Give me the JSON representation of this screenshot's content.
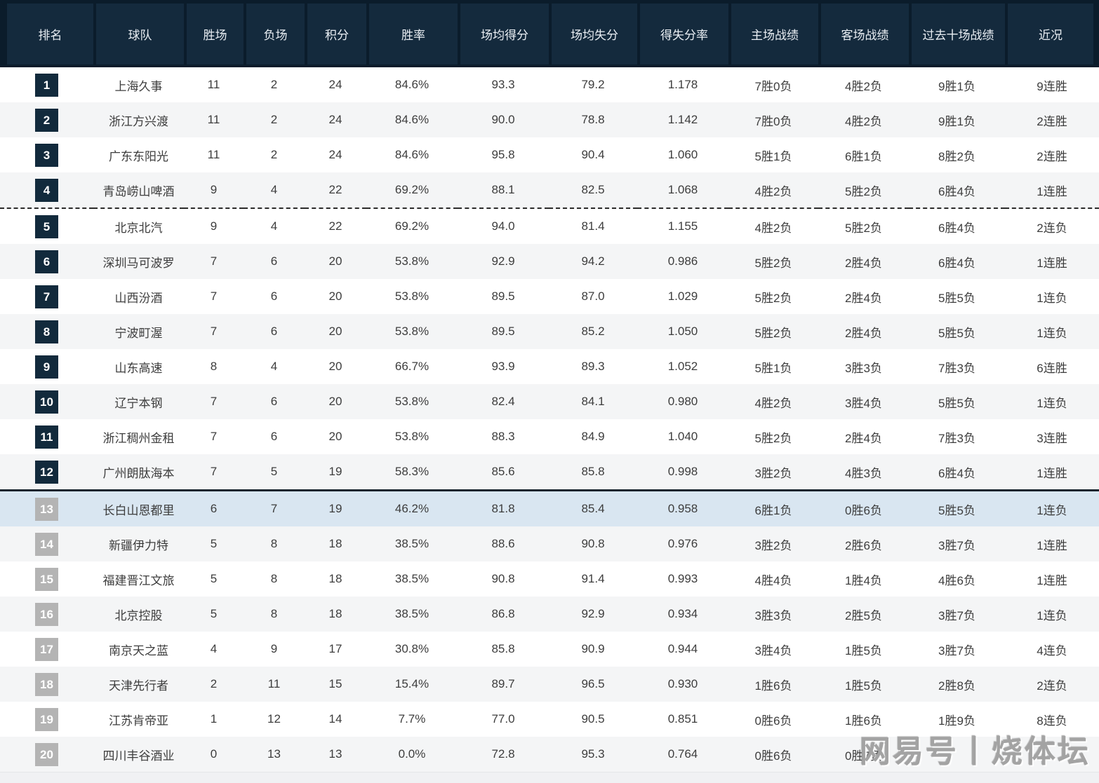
{
  "chart_data": {
    "type": "table",
    "columns": [
      "排名",
      "球队",
      "胜场",
      "负场",
      "积分",
      "胜率",
      "场均得分",
      "场均失分",
      "得失分率",
      "主场战绩",
      "客场战绩",
      "过去十场战绩",
      "近况"
    ],
    "rows": [
      {
        "rank": "1",
        "team": "上海久事",
        "wins": "11",
        "losses": "2",
        "points": "24",
        "win_rate": "84.6%",
        "pts_for": "93.3",
        "pts_against": "79.2",
        "ratio": "1.178",
        "home": "7胜0负",
        "away": "4胜2负",
        "last10": "9胜1负",
        "streak": "9连胜"
      },
      {
        "rank": "2",
        "team": "浙江方兴渡",
        "wins": "11",
        "losses": "2",
        "points": "24",
        "win_rate": "84.6%",
        "pts_for": "90.0",
        "pts_against": "78.8",
        "ratio": "1.142",
        "home": "7胜0负",
        "away": "4胜2负",
        "last10": "9胜1负",
        "streak": "2连胜"
      },
      {
        "rank": "3",
        "team": "广东东阳光",
        "wins": "11",
        "losses": "2",
        "points": "24",
        "win_rate": "84.6%",
        "pts_for": "95.8",
        "pts_against": "90.4",
        "ratio": "1.060",
        "home": "5胜1负",
        "away": "6胜1负",
        "last10": "8胜2负",
        "streak": "2连胜"
      },
      {
        "rank": "4",
        "team": "青岛崂山啤酒",
        "wins": "9",
        "losses": "4",
        "points": "22",
        "win_rate": "69.2%",
        "pts_for": "88.1",
        "pts_against": "82.5",
        "ratio": "1.068",
        "home": "4胜2负",
        "away": "5胜2负",
        "last10": "6胜4负",
        "streak": "1连胜"
      },
      {
        "rank": "5",
        "team": "北京北汽",
        "wins": "9",
        "losses": "4",
        "points": "22",
        "win_rate": "69.2%",
        "pts_for": "94.0",
        "pts_against": "81.4",
        "ratio": "1.155",
        "home": "4胜2负",
        "away": "5胜2负",
        "last10": "6胜4负",
        "streak": "2连负"
      },
      {
        "rank": "6",
        "team": "深圳马可波罗",
        "wins": "7",
        "losses": "6",
        "points": "20",
        "win_rate": "53.8%",
        "pts_for": "92.9",
        "pts_against": "94.2",
        "ratio": "0.986",
        "home": "5胜2负",
        "away": "2胜4负",
        "last10": "6胜4负",
        "streak": "1连胜"
      },
      {
        "rank": "7",
        "team": "山西汾酒",
        "wins": "7",
        "losses": "6",
        "points": "20",
        "win_rate": "53.8%",
        "pts_for": "89.5",
        "pts_against": "87.0",
        "ratio": "1.029",
        "home": "5胜2负",
        "away": "2胜4负",
        "last10": "5胜5负",
        "streak": "1连负"
      },
      {
        "rank": "8",
        "team": "宁波町渥",
        "wins": "7",
        "losses": "6",
        "points": "20",
        "win_rate": "53.8%",
        "pts_for": "89.5",
        "pts_against": "85.2",
        "ratio": "1.050",
        "home": "5胜2负",
        "away": "2胜4负",
        "last10": "5胜5负",
        "streak": "1连负"
      },
      {
        "rank": "9",
        "team": "山东高速",
        "wins": "8",
        "losses": "4",
        "points": "20",
        "win_rate": "66.7%",
        "pts_for": "93.9",
        "pts_against": "89.3",
        "ratio": "1.052",
        "home": "5胜1负",
        "away": "3胜3负",
        "last10": "7胜3负",
        "streak": "6连胜"
      },
      {
        "rank": "10",
        "team": "辽宁本钢",
        "wins": "7",
        "losses": "6",
        "points": "20",
        "win_rate": "53.8%",
        "pts_for": "82.4",
        "pts_against": "84.1",
        "ratio": "0.980",
        "home": "4胜2负",
        "away": "3胜4负",
        "last10": "5胜5负",
        "streak": "1连负"
      },
      {
        "rank": "11",
        "team": "浙江稠州金租",
        "wins": "7",
        "losses": "6",
        "points": "20",
        "win_rate": "53.8%",
        "pts_for": "88.3",
        "pts_against": "84.9",
        "ratio": "1.040",
        "home": "5胜2负",
        "away": "2胜4负",
        "last10": "7胜3负",
        "streak": "3连胜"
      },
      {
        "rank": "12",
        "team": "广州朗肽海本",
        "wins": "7",
        "losses": "5",
        "points": "19",
        "win_rate": "58.3%",
        "pts_for": "85.6",
        "pts_against": "85.8",
        "ratio": "0.998",
        "home": "3胜2负",
        "away": "4胜3负",
        "last10": "6胜4负",
        "streak": "1连胜"
      },
      {
        "rank": "13",
        "team": "长白山恩都里",
        "wins": "6",
        "losses": "7",
        "points": "19",
        "win_rate": "46.2%",
        "pts_for": "81.8",
        "pts_against": "85.4",
        "ratio": "0.958",
        "home": "6胜1负",
        "away": "0胜6负",
        "last10": "5胜5负",
        "streak": "1连负"
      },
      {
        "rank": "14",
        "team": "新疆伊力特",
        "wins": "5",
        "losses": "8",
        "points": "18",
        "win_rate": "38.5%",
        "pts_for": "88.6",
        "pts_against": "90.8",
        "ratio": "0.976",
        "home": "3胜2负",
        "away": "2胜6负",
        "last10": "3胜7负",
        "streak": "1连胜"
      },
      {
        "rank": "15",
        "team": "福建晋江文旅",
        "wins": "5",
        "losses": "8",
        "points": "18",
        "win_rate": "38.5%",
        "pts_for": "90.8",
        "pts_against": "91.4",
        "ratio": "0.993",
        "home": "4胜4负",
        "away": "1胜4负",
        "last10": "4胜6负",
        "streak": "1连胜"
      },
      {
        "rank": "16",
        "team": "北京控股",
        "wins": "5",
        "losses": "8",
        "points": "18",
        "win_rate": "38.5%",
        "pts_for": "86.8",
        "pts_against": "92.9",
        "ratio": "0.934",
        "home": "3胜3负",
        "away": "2胜5负",
        "last10": "3胜7负",
        "streak": "1连负"
      },
      {
        "rank": "17",
        "team": "南京天之蓝",
        "wins": "4",
        "losses": "9",
        "points": "17",
        "win_rate": "30.8%",
        "pts_for": "85.8",
        "pts_against": "90.9",
        "ratio": "0.944",
        "home": "3胜4负",
        "away": "1胜5负",
        "last10": "3胜7负",
        "streak": "4连负"
      },
      {
        "rank": "18",
        "team": "天津先行者",
        "wins": "2",
        "losses": "11",
        "points": "15",
        "win_rate": "15.4%",
        "pts_for": "89.7",
        "pts_against": "96.5",
        "ratio": "0.930",
        "home": "1胜6负",
        "away": "1胜5负",
        "last10": "2胜8负",
        "streak": "2连负"
      },
      {
        "rank": "19",
        "team": "江苏肯帝亚",
        "wins": "1",
        "losses": "12",
        "points": "14",
        "win_rate": "7.7%",
        "pts_for": "77.0",
        "pts_against": "90.5",
        "ratio": "0.851",
        "home": "0胜6负",
        "away": "1胜6负",
        "last10": "1胜9负",
        "streak": "8连负"
      },
      {
        "rank": "20",
        "team": "四川丰谷酒业",
        "wins": "0",
        "losses": "13",
        "points": "13",
        "win_rate": "0.0%",
        "pts_for": "72.8",
        "pts_against": "95.3",
        "ratio": "0.764",
        "home": "0胜6负",
        "away": "0胜7负",
        "last10": "",
        "streak": "",
        "obscured_by_watermark": true
      }
    ],
    "dashed_divider_after_rank": 4,
    "solid_divider_after_rank": 12,
    "highlighted_rank": 13,
    "gray_badge_from_rank": 13
  },
  "watermark": {
    "text": "网易号丨烧体坛"
  },
  "colors": {
    "header_bg": "#0b1c2b",
    "header_cell_bg": "#142a3d",
    "header_text": "#e9eef3",
    "rank_badge_dark": "#122a3c",
    "rank_badge_gray": "#b4b4b4",
    "row_alt_bg": "#f4f5f6",
    "highlight_row_bg": "#d9e6f1",
    "body_text": "#3d3d3d",
    "divider_dark": "#17242e",
    "watermark_color": "#a3a3a3"
  }
}
